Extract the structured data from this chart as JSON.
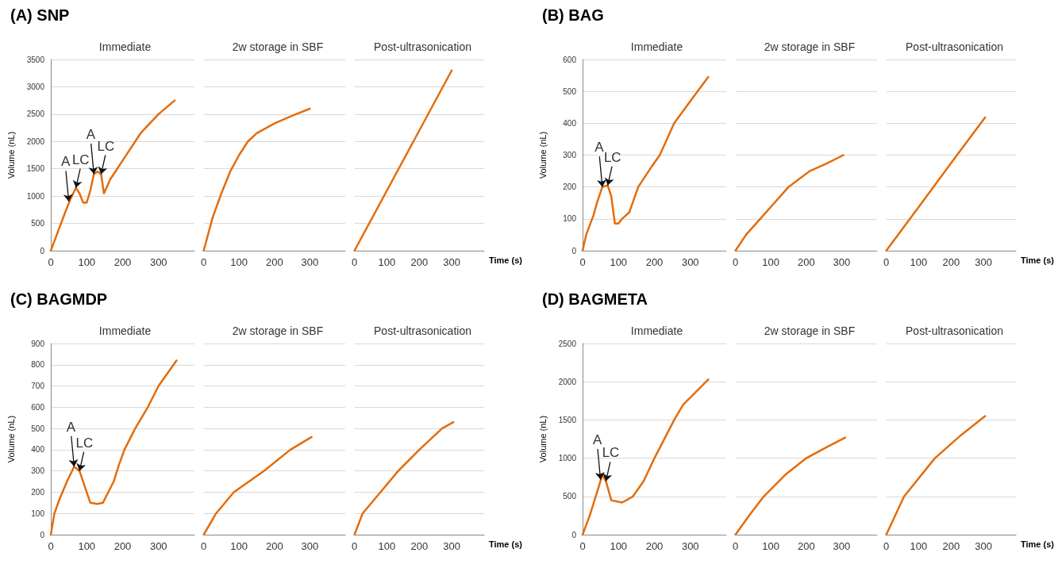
{
  "chart_data": [
    {
      "type": "line",
      "title": "(A) SNP",
      "subtitle": "Immediate",
      "ylabel": "Volume (nL)",
      "color": "#e46c0a",
      "marker": "none",
      "line_style": "solid",
      "grid": "y",
      "xlim": [
        0,
        400
      ],
      "xticks": [
        0,
        100,
        200,
        300
      ],
      "ylim": [
        0,
        3500
      ],
      "yticks": [
        0,
        500,
        1000,
        1500,
        2000,
        2500,
        3000,
        3500
      ],
      "x": [
        0,
        20,
        40,
        55,
        70,
        80,
        90,
        100,
        110,
        120,
        130,
        140,
        148,
        155,
        165,
        200,
        250,
        300,
        345
      ],
      "values": [
        0,
        350,
        700,
        950,
        1150,
        1050,
        880,
        880,
        1100,
        1400,
        1450,
        1400,
        1050,
        1150,
        1300,
        1650,
        2150,
        2500,
        2750
      ],
      "annotations": [
        {
          "text": "A",
          "x": 50,
          "y": 900
        },
        {
          "text": "LC",
          "x": 70,
          "y": 1150
        },
        {
          "text": "A",
          "x": 120,
          "y": 1400
        },
        {
          "text": "LC",
          "x": 140,
          "y": 1400
        }
      ]
    },
    {
      "type": "line",
      "subtitle": "2w storage in SBF",
      "color": "#e46c0a",
      "marker": "none",
      "line_style": "solid",
      "grid": "y",
      "tick_labels": "x",
      "xlim": [
        0,
        400
      ],
      "xticks": [
        0,
        100,
        200,
        300
      ],
      "ylim": [
        0,
        3500
      ],
      "yticks": [
        0,
        500,
        1000,
        1500,
        2000,
        2500,
        3000,
        3500
      ],
      "x": [
        0,
        25,
        50,
        75,
        100,
        125,
        150,
        200,
        250,
        300
      ],
      "values": [
        0,
        600,
        1050,
        1450,
        1750,
        2000,
        2150,
        2330,
        2470,
        2600
      ]
    },
    {
      "type": "line",
      "subtitle": "Post-ultrasonication",
      "xlabel": "Time (s)",
      "color": "#e46c0a",
      "marker": "none",
      "line_style": "solid",
      "grid": "y",
      "tick_labels": "x",
      "xlim": [
        0,
        400
      ],
      "xticks": [
        0,
        100,
        200,
        300
      ],
      "ylim": [
        0,
        3500
      ],
      "yticks": [
        0,
        500,
        1000,
        1500,
        2000,
        2500,
        3000,
        3500
      ],
      "x": [
        0,
        100,
        200,
        300
      ],
      "values": [
        0,
        1100,
        2200,
        3300
      ]
    },
    {
      "type": "line",
      "title": "(B) BAG",
      "subtitle": "Immediate",
      "ylabel": "Volume (nL)",
      "color": "#e46c0a",
      "marker": "none",
      "line_style": "solid",
      "grid": "y",
      "xlim": [
        0,
        400
      ],
      "xticks": [
        0,
        100,
        200,
        300
      ],
      "ylim": [
        0,
        600
      ],
      "yticks": [
        0,
        100,
        200,
        300,
        400,
        500,
        600
      ],
      "x": [
        0,
        10,
        20,
        30,
        40,
        55,
        70,
        80,
        90,
        100,
        110,
        130,
        155,
        190,
        215,
        255,
        320,
        350
      ],
      "values": [
        0,
        50,
        80,
        110,
        150,
        200,
        205,
        170,
        85,
        85,
        100,
        120,
        200,
        260,
        300,
        400,
        500,
        545
      ],
      "annotations": [
        {
          "text": "A",
          "x": 55,
          "y": 200
        },
        {
          "text": "LC",
          "x": 70,
          "y": 205
        }
      ]
    },
    {
      "type": "line",
      "subtitle": "2w storage in SBF",
      "color": "#e46c0a",
      "marker": "none",
      "line_style": "solid",
      "grid": "y",
      "tick_labels": "x",
      "xlim": [
        0,
        400
      ],
      "xticks": [
        0,
        100,
        200,
        300
      ],
      "ylim": [
        0,
        600
      ],
      "yticks": [
        0,
        100,
        200,
        300,
        400,
        500,
        600
      ],
      "x": [
        0,
        30,
        70,
        110,
        150,
        210,
        260,
        305
      ],
      "values": [
        0,
        50,
        100,
        150,
        200,
        250,
        275,
        300
      ]
    },
    {
      "type": "line",
      "subtitle": "Post-ultrasonication",
      "xlabel": "Time (s)",
      "color": "#e46c0a",
      "marker": "none",
      "line_style": "solid",
      "grid": "y",
      "tick_labels": "x",
      "xlim": [
        0,
        400
      ],
      "xticks": [
        0,
        100,
        200,
        300
      ],
      "ylim": [
        0,
        600
      ],
      "yticks": [
        0,
        100,
        200,
        300,
        400,
        500,
        600
      ],
      "x": [
        0,
        100,
        200,
        305
      ],
      "values": [
        0,
        137,
        275,
        418
      ]
    },
    {
      "type": "line",
      "title": "(C) BAGMDP",
      "subtitle": "Immediate",
      "ylabel": "Volume (nL)",
      "color": "#e46c0a",
      "marker": "none",
      "line_style": "solid",
      "grid": "y",
      "xlim": [
        0,
        400
      ],
      "xticks": [
        0,
        100,
        200,
        300
      ],
      "ylim": [
        0,
        900
      ],
      "yticks": [
        0,
        100,
        200,
        300,
        400,
        500,
        600,
        700,
        800,
        900
      ],
      "x": [
        0,
        10,
        25,
        45,
        65,
        80,
        90,
        100,
        110,
        130,
        145,
        160,
        175,
        190,
        205,
        235,
        270,
        300,
        350
      ],
      "values": [
        0,
        100,
        170,
        250,
        320,
        300,
        250,
        200,
        150,
        145,
        150,
        200,
        250,
        330,
        400,
        500,
        600,
        700,
        820
      ],
      "annotations": [
        {
          "text": "A",
          "x": 65,
          "y": 320
        },
        {
          "text": "LC",
          "x": 80,
          "y": 300
        }
      ]
    },
    {
      "type": "line",
      "subtitle": "2w storage in SBF",
      "color": "#e46c0a",
      "marker": "none",
      "line_style": "solid",
      "grid": "y",
      "tick_labels": "x",
      "xlim": [
        0,
        400
      ],
      "xticks": [
        0,
        100,
        200,
        300
      ],
      "ylim": [
        0,
        900
      ],
      "yticks": [
        0,
        100,
        200,
        300,
        400,
        500,
        600,
        700,
        800,
        900
      ],
      "x": [
        0,
        35,
        85,
        170,
        245,
        305
      ],
      "values": [
        0,
        100,
        200,
        300,
        400,
        460
      ]
    },
    {
      "type": "line",
      "subtitle": "Post-ultrasonication",
      "xlabel": "Time (s)",
      "color": "#e46c0a",
      "marker": "none",
      "line_style": "solid",
      "grid": "y",
      "tick_labels": "x",
      "xlim": [
        0,
        400
      ],
      "xticks": [
        0,
        100,
        200,
        300
      ],
      "ylim": [
        0,
        900
      ],
      "yticks": [
        0,
        100,
        200,
        300,
        400,
        500,
        600,
        700,
        800,
        900
      ],
      "x": [
        0,
        25,
        80,
        135,
        200,
        270,
        305
      ],
      "values": [
        0,
        100,
        200,
        300,
        400,
        500,
        530
      ]
    },
    {
      "type": "line",
      "title": "(D) BAGMETA",
      "subtitle": "Immediate",
      "ylabel": "Volume (nL)",
      "color": "#e46c0a",
      "marker": "none",
      "line_style": "solid",
      "grid": "y",
      "xlim": [
        0,
        400
      ],
      "xticks": [
        0,
        100,
        200,
        300
      ],
      "ylim": [
        0,
        2500
      ],
      "yticks": [
        0,
        500,
        1000,
        1500,
        2000,
        2500
      ],
      "x": [
        0,
        20,
        40,
        55,
        65,
        80,
        110,
        140,
        170,
        200,
        255,
        280,
        350
      ],
      "values": [
        0,
        250,
        550,
        780,
        700,
        450,
        420,
        500,
        700,
        1000,
        1500,
        1700,
        2030
      ],
      "annotations": [
        {
          "text": "A",
          "x": 50,
          "y": 720
        },
        {
          "text": "LC",
          "x": 65,
          "y": 700
        }
      ]
    },
    {
      "type": "line",
      "subtitle": "2w storage in SBF",
      "color": "#e46c0a",
      "marker": "none",
      "line_style": "solid",
      "grid": "y",
      "tick_labels": "x",
      "xlim": [
        0,
        400
      ],
      "xticks": [
        0,
        100,
        200,
        300
      ],
      "ylim": [
        0,
        2500
      ],
      "yticks": [
        0,
        500,
        1000,
        1500,
        2000,
        2500
      ],
      "x": [
        0,
        40,
        80,
        140,
        200,
        260,
        310
      ],
      "values": [
        0,
        260,
        500,
        780,
        1000,
        1150,
        1270
      ]
    },
    {
      "type": "line",
      "subtitle": "Post-ultrasonication",
      "xlabel": "Time (s)",
      "color": "#e46c0a",
      "marker": "none",
      "line_style": "solid",
      "grid": "y",
      "tick_labels": "x",
      "xlim": [
        0,
        400
      ],
      "xticks": [
        0,
        100,
        200,
        300
      ],
      "ylim": [
        0,
        2500
      ],
      "yticks": [
        0,
        500,
        1000,
        1500,
        2000,
        2500
      ],
      "x": [
        0,
        55,
        150,
        230,
        305
      ],
      "values": [
        0,
        500,
        1000,
        1300,
        1550
      ]
    }
  ]
}
